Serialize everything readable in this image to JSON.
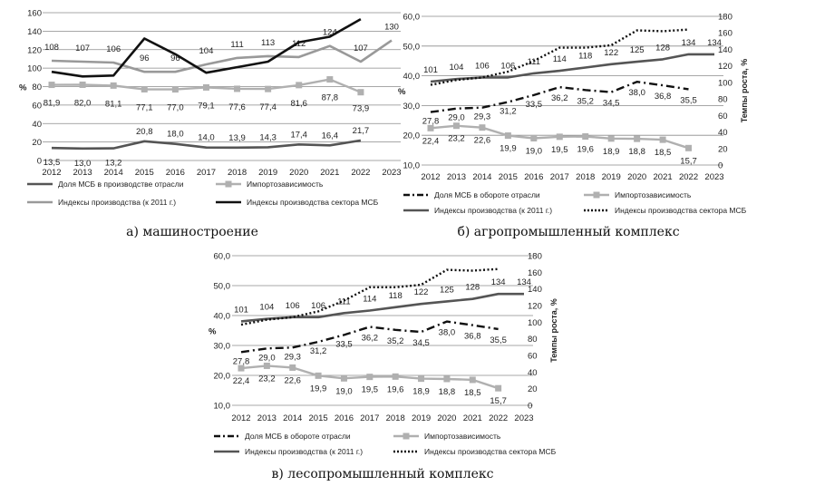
{
  "years": [
    "2012",
    "2013",
    "2014",
    "2015",
    "2016",
    "2017",
    "2018",
    "2019",
    "2020",
    "2021",
    "2022",
    "2023"
  ],
  "chart_data": [
    {
      "type": "line",
      "caption": "а) машиностроение",
      "y_unit_left": "%",
      "ylim_left": [
        0,
        160
      ],
      "yticks_left": [
        "0",
        "20",
        "40",
        "60",
        "80",
        "100",
        "120",
        "140",
        "160"
      ],
      "grid": true,
      "legend_position": "bottom",
      "series": [
        {
          "name": "Доля МСБ в производстве отрасли",
          "color": "#555555",
          "style": "solid",
          "values": [
            13.5,
            13.0,
            13.2,
            20.8,
            18.0,
            14.0,
            13.9,
            14.3,
            17.4,
            16.4,
            21.7,
            null
          ],
          "labels": [
            "13,5",
            "13,0",
            "13,2",
            "20,8",
            "18,0",
            "14,0",
            "13,9",
            "14,3",
            "17,4",
            "16,4",
            "21,7",
            ""
          ]
        },
        {
          "name": "Импортозависимость",
          "color": "#b0b0b0",
          "style": "marker",
          "values": [
            81.9,
            82.0,
            81.1,
            77.1,
            77.0,
            79.1,
            77.6,
            77.4,
            81.6,
            87.8,
            73.9,
            null
          ],
          "labels": [
            "81,9",
            "82,0",
            "81,1",
            "77,1",
            "77,0",
            "79,1",
            "77,6",
            "77,4",
            "81,6",
            "87,8",
            "73,9",
            ""
          ]
        },
        {
          "name": "Индексы производства (к 2011 г.)",
          "color": "#999999",
          "style": "solid",
          "values": [
            108,
            107,
            106,
            96,
            96,
            104,
            111,
            113,
            112,
            124,
            107,
            130
          ],
          "labels": [
            "108",
            "107",
            "106",
            "96",
            "96",
            "104",
            "111",
            "113",
            "112",
            "124",
            "107",
            "130"
          ]
        },
        {
          "name": "Индексы производства сектора МСБ",
          "color": "#111111",
          "style": "solid",
          "values": [
            96,
            91,
            92,
            132,
            115,
            95,
            101,
            107,
            128,
            134,
            153,
            null
          ],
          "labels": []
        }
      ]
    },
    {
      "type": "line",
      "caption": "б) агропромышленный комплекс",
      "y_unit_left": "%",
      "ylabel_right": "Темпы роста, %",
      "ylim_left": [
        10,
        60
      ],
      "ylim_right": [
        0,
        180
      ],
      "yticks_left": [
        "10,0",
        "20,0",
        "30,0",
        "40,0",
        "50,0",
        "60,0"
      ],
      "yticks_right": [
        "0",
        "20",
        "40",
        "60",
        "80",
        "100",
        "120",
        "140",
        "160",
        "180"
      ],
      "grid": true,
      "legend_position": "bottom",
      "series": [
        {
          "name": "Доля МСБ в обороте отрасли",
          "axis": "left",
          "color": "#111111",
          "style": "dashdot",
          "values": [
            27.8,
            29.0,
            29.3,
            31.2,
            33.5,
            36.2,
            35.2,
            34.5,
            38.0,
            36.8,
            35.5,
            null
          ],
          "labels": [
            "27,8",
            "29,0",
            "29,3",
            "31,2",
            "33,5",
            "36,2",
            "35,2",
            "34,5",
            "38,0",
            "36,8",
            "35,5",
            ""
          ]
        },
        {
          "name": "Импортозависимость",
          "axis": "left",
          "color": "#b0b0b0",
          "style": "marker",
          "values": [
            22.4,
            23.2,
            22.6,
            19.9,
            19.0,
            19.5,
            19.6,
            18.9,
            18.8,
            18.5,
            15.7,
            null
          ],
          "labels": [
            "22,4",
            "23,2",
            "22,6",
            "19,9",
            "19,0",
            "19,5",
            "19,6",
            "18,9",
            "18,8",
            "18,5",
            "15,7",
            ""
          ]
        },
        {
          "name": "Индексы производства (к 2011 г.)",
          "axis": "right",
          "color": "#555555",
          "style": "solid",
          "values": [
            101,
            104,
            106,
            106,
            111,
            114,
            118,
            122,
            125,
            128,
            134,
            134
          ],
          "labels": [
            "101",
            "104",
            "106",
            "106",
            "111",
            "114",
            "118",
            "122",
            "125",
            "128",
            "134",
            "134"
          ]
        },
        {
          "name": "Индексы производства сектора МСБ",
          "axis": "right",
          "color": "#111111",
          "style": "dotted",
          "values": [
            97,
            103,
            106,
            113,
            126,
            142,
            142,
            145,
            163,
            162,
            164,
            null
          ],
          "labels": []
        }
      ]
    },
    {
      "type": "line",
      "caption": "в) лесопромышленный комплекс",
      "y_unit_left": "%",
      "ylabel_right": "Темпы роста, %",
      "ylim_left": [
        10,
        60
      ],
      "ylim_right": [
        0,
        180
      ],
      "yticks_left": [
        "10,0",
        "20,0",
        "30,0",
        "40,0",
        "50,0",
        "60,0"
      ],
      "yticks_right": [
        "0",
        "20",
        "40",
        "60",
        "80",
        "100",
        "120",
        "140",
        "160",
        "180"
      ],
      "grid": true,
      "legend_position": "bottom",
      "series": [
        {
          "name": "Доля МСБ в обороте отрасли",
          "axis": "left",
          "color": "#111111",
          "style": "dashdot",
          "values": [
            27.8,
            29.0,
            29.3,
            31.2,
            33.5,
            36.2,
            35.2,
            34.5,
            38.0,
            36.8,
            35.5,
            null
          ],
          "labels": [
            "27,8",
            "29,0",
            "29,3",
            "31,2",
            "33,5",
            "36,2",
            "35,2",
            "34,5",
            "38,0",
            "36,8",
            "35,5",
            ""
          ]
        },
        {
          "name": "Импортозависимость",
          "axis": "left",
          "color": "#b0b0b0",
          "style": "marker",
          "values": [
            22.4,
            23.2,
            22.6,
            19.9,
            19.0,
            19.5,
            19.6,
            18.9,
            18.8,
            18.5,
            15.7,
            null
          ],
          "labels": [
            "22,4",
            "23,2",
            "22,6",
            "19,9",
            "19,0",
            "19,5",
            "19,6",
            "18,9",
            "18,8",
            "18,5",
            "15,7",
            ""
          ]
        },
        {
          "name": "Индексы производства (к 2011 г.)",
          "axis": "right",
          "color": "#555555",
          "style": "solid",
          "values": [
            101,
            104,
            106,
            106,
            111,
            114,
            118,
            122,
            125,
            128,
            134,
            134
          ],
          "labels": [
            "101",
            "104",
            "106",
            "106",
            "111",
            "114",
            "118",
            "122",
            "125",
            "128",
            "134",
            "134"
          ]
        },
        {
          "name": "Индексы производства сектора МСБ",
          "axis": "right",
          "color": "#111111",
          "style": "dotted",
          "values": [
            97,
            103,
            106,
            113,
            126,
            142,
            142,
            145,
            163,
            162,
            164,
            null
          ],
          "labels": []
        }
      ]
    }
  ]
}
